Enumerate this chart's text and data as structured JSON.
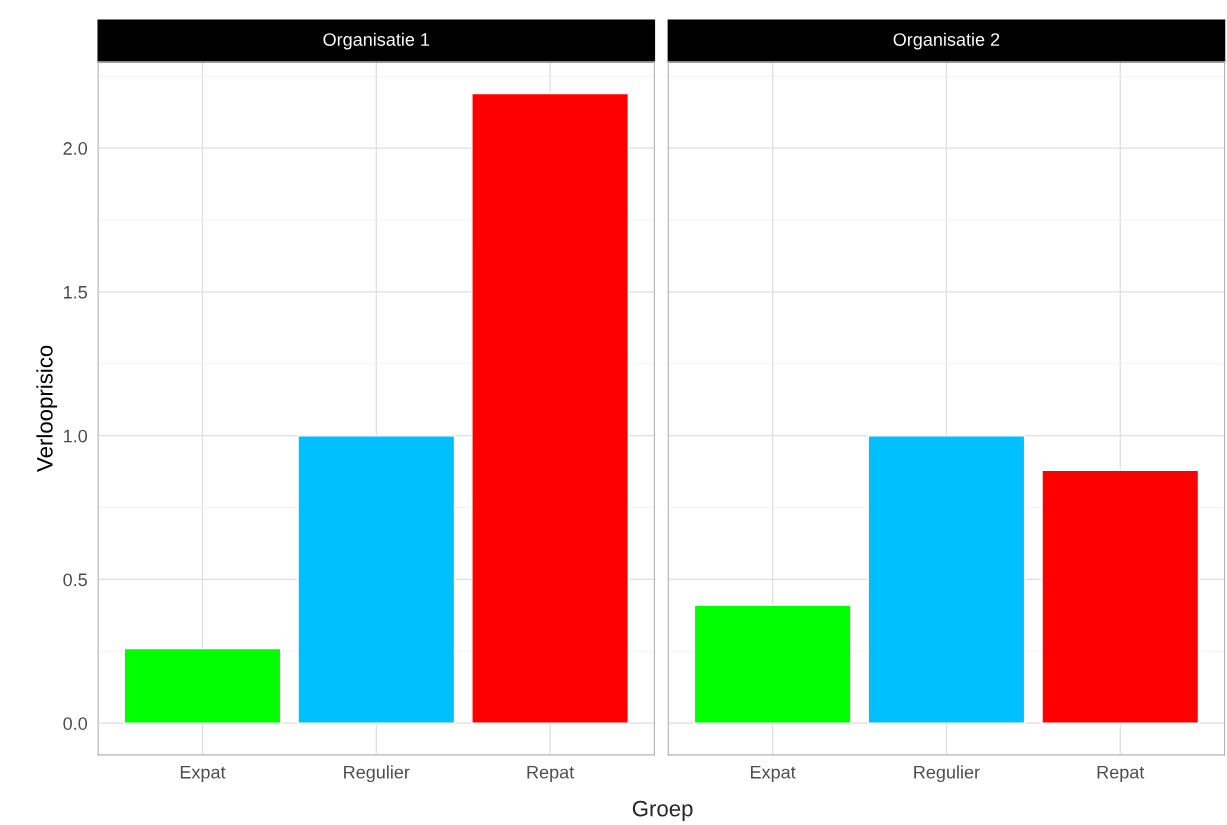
{
  "chart_data": [
    {
      "type": "bar",
      "title": "Organisatie 1",
      "xlabel": "Groep",
      "ylabel": "Verlooprisico",
      "categories": [
        "Expat",
        "Regulier",
        "Repat"
      ],
      "values": [
        0.26,
        1.0,
        2.19
      ],
      "colors": [
        "#00ff00",
        "#00bfff",
        "#ff0000"
      ],
      "ylim": [
        -0.11,
        2.3
      ],
      "yticks": [
        {
          "value": 0,
          "label": "0.0"
        },
        {
          "value": 0.25,
          "label": null
        },
        {
          "value": 0.5,
          "label": "0.5"
        },
        {
          "value": 0.75,
          "label": null
        },
        {
          "value": 1,
          "label": "1.0"
        },
        {
          "value": 1.25,
          "label": null
        },
        {
          "value": 1.5,
          "label": "1.5"
        },
        {
          "value": 1.75,
          "label": null
        },
        {
          "value": 2,
          "label": "2.0"
        },
        {
          "value": 2.25,
          "label": null
        }
      ],
      "grid": true
    },
    {
      "type": "bar",
      "title": "Organisatie 2",
      "categories": [
        "Expat",
        "Regulier",
        "Repat"
      ],
      "values": [
        0.41,
        1.0,
        0.88
      ],
      "colors": [
        "#00ff00",
        "#00bfff",
        "#ff0000"
      ],
      "ylim": [
        -0.11,
        2.3
      ],
      "yticks": [
        0,
        {
          "value": 0.25,
          "label": null
        },
        0.5,
        {
          "value": 0.75,
          "label": null
        },
        1,
        {
          "value": 1.25,
          "label": null
        },
        1.5,
        {
          "value": 1.75,
          "label": null
        },
        2,
        {
          "value": 2.25,
          "label": null
        }
      ],
      "grid": true,
      "tick_labels": "x"
    }
  ]
}
